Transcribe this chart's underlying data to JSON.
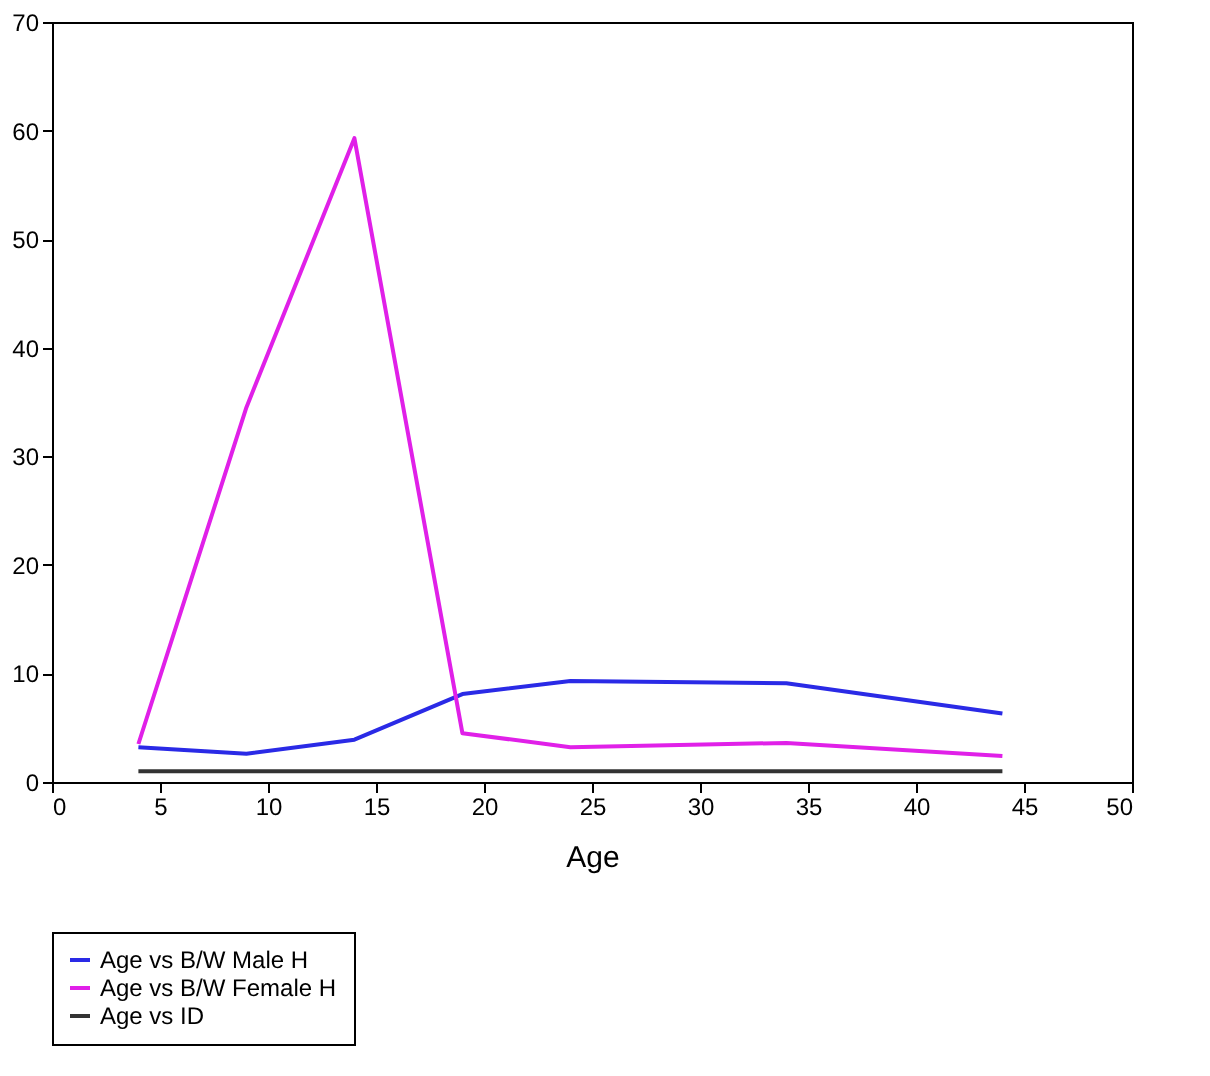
{
  "chart_data": {
    "type": "line",
    "xlabel": "Age",
    "x": [
      4,
      9,
      14,
      19,
      24,
      34,
      44
    ],
    "series": [
      {
        "name": "Age vs B/W Male H",
        "color": "#2a2ae6",
        "values": [
          3.2,
          2.6,
          3.9,
          8.1,
          9.3,
          9.1,
          6.3
        ]
      },
      {
        "name": "Age vs B/W Female H",
        "color": "#e020e8",
        "values": [
          3.5,
          34.5,
          59.3,
          4.5,
          3.2,
          3.6,
          2.4
        ]
      },
      {
        "name": "Age vs ID",
        "color": "#333333",
        "values": [
          1,
          1,
          1,
          1,
          1,
          1,
          1
        ]
      }
    ],
    "xlim": [
      0,
      50
    ],
    "xticks": [
      0,
      5,
      10,
      15,
      20,
      25,
      30,
      35,
      40,
      45,
      50
    ],
    "ylim": [
      0,
      70
    ],
    "yticks": [
      0,
      10,
      20,
      30,
      40,
      50,
      60,
      70
    ],
    "grid": false,
    "legend": "bottom left",
    "marker": "none",
    "line_style": "solid"
  }
}
